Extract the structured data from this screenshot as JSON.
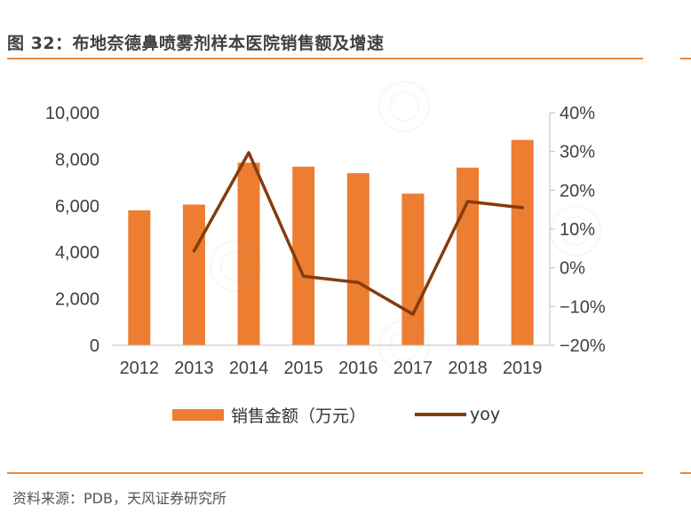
{
  "title": "图 32：布地奈德鼻喷雾剂样本医院销售额及增速",
  "source": "资料来源：PDB，天风证券研究所",
  "colors": {
    "bar": "#ed7d31",
    "line": "#843c0c",
    "rule": "#e78a3c",
    "axis": "#bfbfbf"
  },
  "chart_data": {
    "type": "bar",
    "categories": [
      "2012",
      "2013",
      "2014",
      "2015",
      "2016",
      "2017",
      "2018",
      "2019"
    ],
    "series": [
      {
        "name": "销售金额（万元）",
        "type": "bar",
        "axis": "left",
        "values": [
          5800,
          6050,
          7850,
          7680,
          7400,
          6520,
          7640,
          8830
        ]
      },
      {
        "name": "yoy",
        "type": "line",
        "axis": "right",
        "values": [
          null,
          4.3,
          29.7,
          -2.2,
          -3.8,
          -12.0,
          17.1,
          15.5
        ]
      }
    ],
    "y_left": {
      "min": 0,
      "max": 10000,
      "ticks": [
        "0",
        "2,000",
        "4,000",
        "6,000",
        "8,000",
        "10,000"
      ]
    },
    "y_right": {
      "min": -20,
      "max": 40,
      "ticks": [
        "-20%",
        "-10%",
        "0%",
        "10%",
        "20%",
        "30%",
        "40%"
      ]
    },
    "grid": false,
    "legend_position": "bottom"
  }
}
